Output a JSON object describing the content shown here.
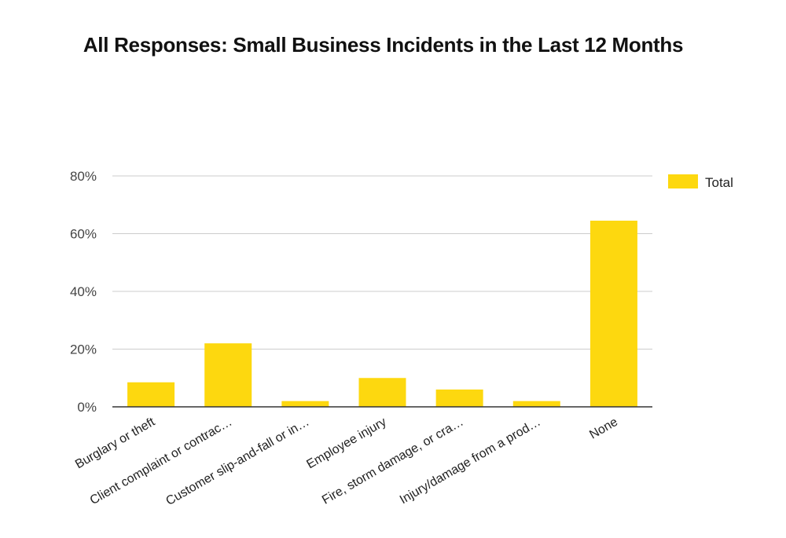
{
  "chart_data": {
    "type": "bar",
    "title": "All Responses: Small Business Incidents in the Last 12 Months",
    "categories": [
      "Burglary or theft",
      "Client complaint or contrac…",
      "Customer slip-and-fall or in…",
      "Employee injury",
      "Fire, storm damage, or cra…",
      "Injury/damage from a prod…",
      "None"
    ],
    "series": [
      {
        "name": "Total",
        "values": [
          8.5,
          22,
          2,
          10,
          6,
          2,
          64.5
        ]
      }
    ],
    "ylim": [
      0,
      80
    ],
    "yticks": [
      0,
      20,
      40,
      60,
      80
    ],
    "ytick_labels": [
      "0%",
      "20%",
      "40%",
      "60%",
      "80%"
    ],
    "xlabel": "",
    "ylabel": "",
    "grid": true,
    "legend_position": "top-right",
    "colors": {
      "bar": "#FDD80F",
      "grid": "#cccccc",
      "axis": "#333333"
    }
  }
}
